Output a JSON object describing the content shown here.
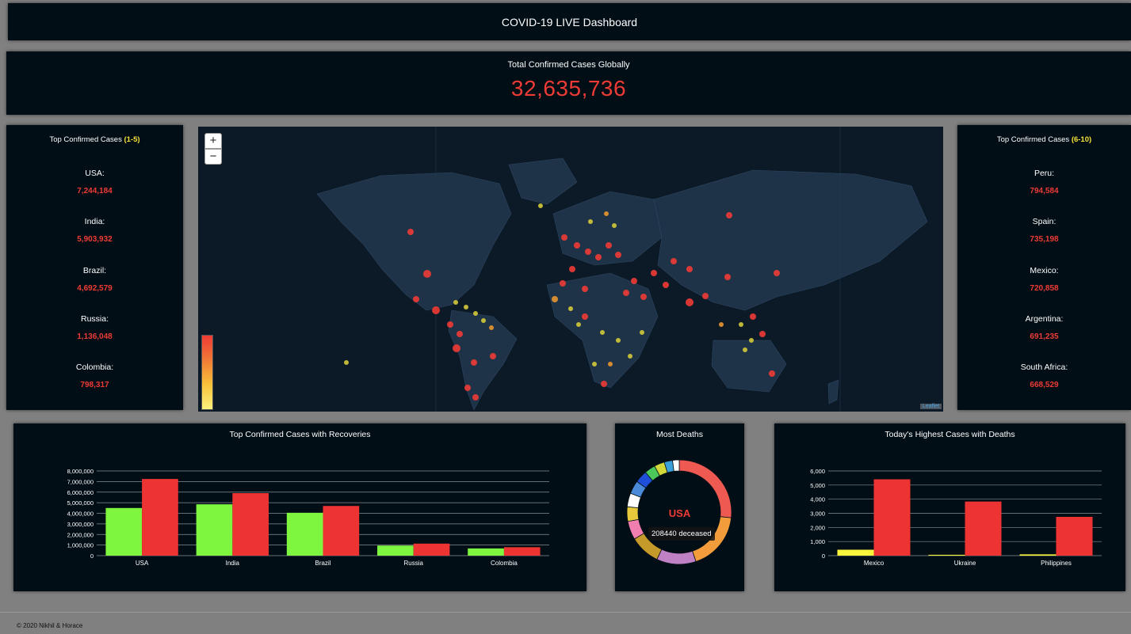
{
  "header": {
    "title": "COVID-19 LIVE Dashboard"
  },
  "total": {
    "label": "Total Confirmed Cases Globally",
    "value": "32,635,736"
  },
  "left_panel": {
    "title_prefix": "Top Confirmed Cases ",
    "title_range": "(1-5)",
    "items": [
      {
        "name": "USA:",
        "value": "7,244,184"
      },
      {
        "name": "India:",
        "value": "5,903,932"
      },
      {
        "name": "Brazil:",
        "value": "4,692,579"
      },
      {
        "name": "Russia:",
        "value": "1,136,048"
      },
      {
        "name": "Colombia:",
        "value": "798,317"
      }
    ]
  },
  "right_panel": {
    "title_prefix": "Top Confirmed Cases ",
    "title_range": "(6-10)",
    "items": [
      {
        "name": "Peru:",
        "value": "794,584"
      },
      {
        "name": "Spain:",
        "value": "735,198"
      },
      {
        "name": "Mexico:",
        "value": "720,858"
      },
      {
        "name": "Argentina:",
        "value": "691,235"
      },
      {
        "name": "South Africa:",
        "value": "668,529"
      }
    ]
  },
  "map": {
    "zoom_in": "+",
    "zoom_out": "−",
    "attribution": "Leaflet",
    "colors": {
      "high": "#ee3b35",
      "mid": "#e8952f",
      "low": "#d4c93a",
      "land": "#1e3347",
      "ocean": "#0c1a28"
    }
  },
  "charts": {
    "recoveries": {
      "title": "Top Confirmed Cases with Recoveries"
    },
    "deaths": {
      "title": "Most Deaths",
      "center_label": "USA",
      "tooltip": "208440 deceased"
    },
    "today": {
      "title": "Today's Highest Cases with Deaths"
    }
  },
  "footer": {
    "text": "© 2020 Nikhil & Horace"
  },
  "chart_data": [
    {
      "type": "bar",
      "title": "Top Confirmed Cases with Recoveries",
      "categories": [
        "USA",
        "India",
        "Brazil",
        "Russia",
        "Colombia"
      ],
      "series": [
        {
          "color": "#7ef53f",
          "values": [
            4500000,
            4850000,
            4050000,
            950000,
            680000
          ]
        },
        {
          "color": "#ee3333",
          "values": [
            7244184,
            5903932,
            4692579,
            1136048,
            798317
          ]
        }
      ],
      "ylim": [
        0,
        8000000
      ],
      "yticks": [
        "0",
        "1,000,000",
        "2,000,000",
        "3,000,000",
        "4,000,000",
        "5,000,000",
        "6,000,000",
        "7,000,000",
        "8,000,000"
      ],
      "grid": true
    },
    {
      "type": "pie",
      "title": "Most Deaths",
      "values": [
        208440,
        141000,
        95000,
        73000,
        45000,
        35000,
        33000,
        32000,
        30000,
        26000,
        25000,
        20000,
        16000
      ],
      "colors": [
        "#ee5a52",
        "#f39c3c",
        "#c080c4",
        "#c49a2a",
        "#f07fb0",
        "#e8c93c",
        "#ffffff",
        "#4a8ad8",
        "#1f4fd8",
        "#4cc85a",
        "#d2d83a",
        "#3a9fd8",
        "#ffffff"
      ]
    },
    {
      "type": "bar",
      "title": "Today's Highest Cases with Deaths",
      "categories": [
        "Mexico",
        "Ukraine",
        "Philippines"
      ],
      "series": [
        {
          "color": "#f8f53a",
          "values": [
            420,
            60,
            90
          ]
        },
        {
          "color": "#ee3333",
          "values": [
            5408,
            3833,
            2748
          ]
        }
      ],
      "ylim": [
        0,
        6000
      ],
      "yticks": [
        "0",
        "1,000",
        "2,000",
        "3,000",
        "4,000",
        "5,000",
        "6,000"
      ],
      "grid": true
    }
  ]
}
